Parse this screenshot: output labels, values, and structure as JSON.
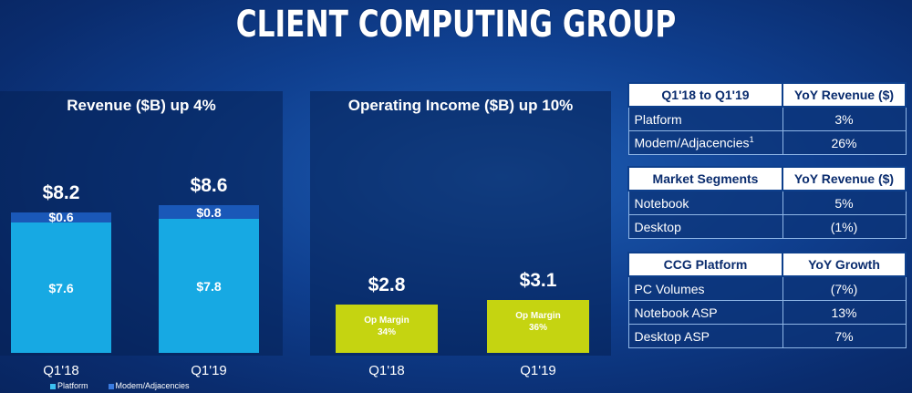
{
  "page_title": "CLIENT COMPUTING GROUP",
  "colors": {
    "platform": "#17a9e3",
    "modem_adjacencies": "#1a58b8",
    "op_income": "#c5d411"
  },
  "chart_data": [
    {
      "type": "bar",
      "title": "Revenue ($B) up 4%",
      "categories": [
        "Q1'18",
        "Q1'19"
      ],
      "stacked": true,
      "series": [
        {
          "name": "Platform",
          "values": [
            7.6,
            7.8
          ],
          "labels": [
            "$7.6",
            "$7.8"
          ]
        },
        {
          "name": "Modem/Adjacencies",
          "values": [
            0.6,
            0.8
          ],
          "labels": [
            "$0.6",
            "$0.8"
          ]
        }
      ],
      "totals": [
        8.2,
        8.6
      ],
      "total_labels": [
        "$8.2",
        "$8.6"
      ],
      "legend": [
        "Platform",
        "Modem/Adjacencies"
      ],
      "legend_position": "bottom-left",
      "ylim": [
        0,
        10.8
      ]
    },
    {
      "type": "bar",
      "title": "Operating Income ($B) up 10%",
      "categories": [
        "Q1'18",
        "Q1'19"
      ],
      "values": [
        2.8,
        3.1
      ],
      "value_labels": [
        "$2.8",
        "$3.1"
      ],
      "annotations": [
        {
          "line1": "Op Margin",
          "line2": "34%"
        },
        {
          "line1": "Op Margin",
          "line2": "36%"
        }
      ],
      "ylim": [
        0,
        10.8
      ]
    }
  ],
  "tables": [
    {
      "headers": [
        "Q1'18 to Q1'19",
        "YoY Revenue ($)"
      ],
      "rows": [
        {
          "label": "Platform",
          "sup": "",
          "value": "3%"
        },
        {
          "label": "Modem/Adjacencies",
          "sup": "1",
          "value": "26%"
        }
      ]
    },
    {
      "headers": [
        "Market Segments",
        "YoY Revenue ($)"
      ],
      "rows": [
        {
          "label": "Notebook",
          "sup": "",
          "value": "5%"
        },
        {
          "label": "Desktop",
          "sup": "",
          "value": "(1%)"
        }
      ]
    },
    {
      "headers": [
        "CCG Platform",
        "YoY Growth"
      ],
      "rows": [
        {
          "label": "PC Volumes",
          "sup": "",
          "value": "(7%)"
        },
        {
          "label": "Notebook ASP",
          "sup": "",
          "value": "13%"
        },
        {
          "label": "Desktop ASP",
          "sup": "",
          "value": "7%"
        }
      ]
    }
  ]
}
